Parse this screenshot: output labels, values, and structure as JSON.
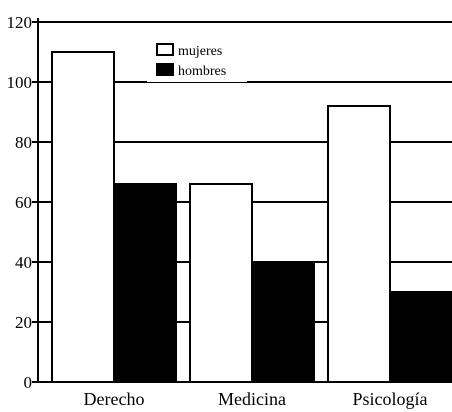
{
  "chart_data": {
    "type": "bar",
    "title": "",
    "xlabel": "",
    "ylabel": "",
    "categories": [
      "Derecho",
      "Medicina",
      "Psicología"
    ],
    "series": [
      {
        "name": "mujeres",
        "values": [
          110,
          66,
          92
        ],
        "color": "#ffffff"
      },
      {
        "name": "hombres",
        "values": [
          66,
          40,
          30
        ],
        "color": "#000000"
      }
    ],
    "ylim": [
      0,
      120
    ],
    "yticks": [
      0,
      20,
      40,
      60,
      80,
      100,
      120
    ],
    "ytick_labels": [
      "0",
      "20",
      "40",
      "60",
      "80",
      "100",
      "120"
    ],
    "grid": true,
    "legend_position": "top-center"
  }
}
